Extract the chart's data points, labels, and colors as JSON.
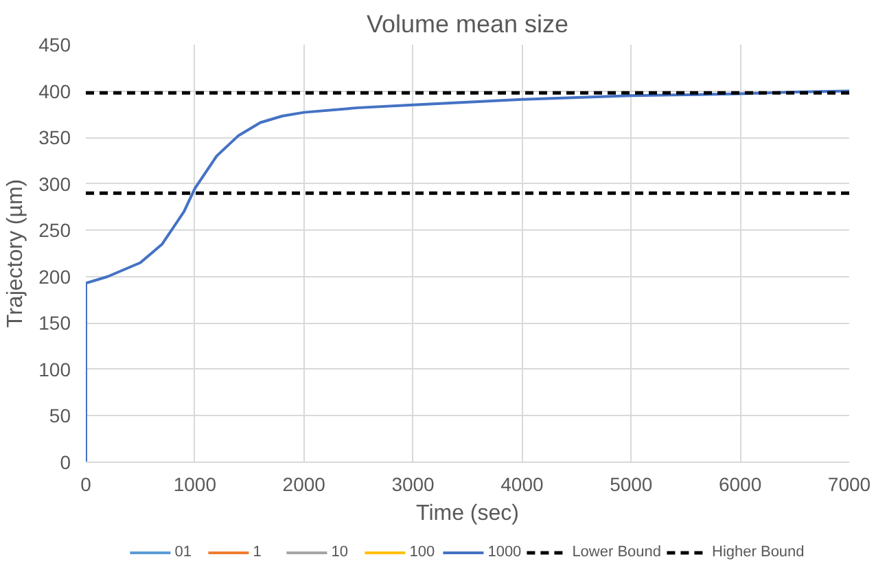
{
  "chart_data": {
    "type": "line",
    "title": "Volume mean size",
    "xlabel": "Time (sec)",
    "ylabel": "Trajectory (µm)",
    "xlim": [
      0,
      7000
    ],
    "xticks": [
      0,
      1000,
      2000,
      3000,
      4000,
      5000,
      6000,
      7000
    ],
    "ylim": [
      0,
      450
    ],
    "yticks": [
      0,
      50,
      100,
      150,
      200,
      250,
      300,
      350,
      400,
      450
    ],
    "grid": true,
    "legend": "bottom",
    "line_style": "solid",
    "series": [
      {
        "name": "01",
        "color": "#5b9bd5",
        "values": [
          null,
          null
        ]
      },
      {
        "name": "1",
        "color": "#ed7d31",
        "values": [
          null,
          null
        ]
      },
      {
        "name": "10",
        "color": "#a5a5a5",
        "values": [
          null,
          null
        ]
      },
      {
        "name": "100",
        "color": "#ffc000",
        "values": [
          null,
          null
        ]
      },
      {
        "name": "1000",
        "color": "#4472c4",
        "x": [
          0,
          0,
          200,
          500,
          700,
          900,
          1000,
          1200,
          1400,
          1600,
          1800,
          2000,
          2500,
          3000,
          3500,
          4000,
          4500,
          5000,
          5500,
          6000,
          6500,
          7000
        ],
        "values": [
          0,
          193,
          200,
          215,
          235,
          270,
          295,
          330,
          352,
          366,
          373,
          377,
          382,
          385,
          388,
          391,
          393,
          395,
          396,
          397,
          399,
          400
        ]
      },
      {
        "name": "Lower Bound",
        "color": "#000000",
        "line_style": "dashed",
        "x": [
          0,
          7000
        ],
        "values": [
          290,
          290
        ]
      },
      {
        "name": "Higher Bound",
        "color": "#000000",
        "line_style": "dashed",
        "x": [
          0,
          7000
        ],
        "values": [
          398,
          398
        ]
      }
    ]
  }
}
